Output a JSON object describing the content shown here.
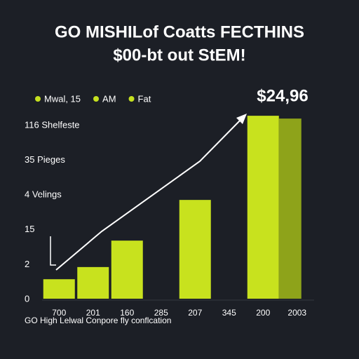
{
  "chart_data": {
    "type": "bar",
    "title": "GO MISHILof Coatts FECTHINS",
    "subtitle": "$00-bt out StEM!",
    "annotation": "$24,96",
    "legend": [
      "Mwal, 15",
      "AM",
      "Fat"
    ],
    "legend_color": "#c5e01f",
    "footer": "GO High Lelwal Conpore fly conflcation",
    "categories": [
      "700",
      "201",
      "160",
      "285",
      "207",
      "345",
      "200",
      "2003"
    ],
    "values": [
      0.56,
      0.91,
      1.67,
      null,
      2.84,
      null,
      5.26,
      null
    ],
    "color": "#c8e21e",
    "side_color": "#8ea31a",
    "ylim": [
      0,
      5.5
    ],
    "yticks": [
      0,
      {
        "value": 1,
        "label": "2"
      },
      {
        "value": 2,
        "label": "15"
      },
      {
        "value": 3,
        "label": "4 Velings"
      },
      {
        "value": 4,
        "label": "35 Pieges"
      },
      {
        "value": 5,
        "label": "116 Shelfeste"
      }
    ]
  }
}
